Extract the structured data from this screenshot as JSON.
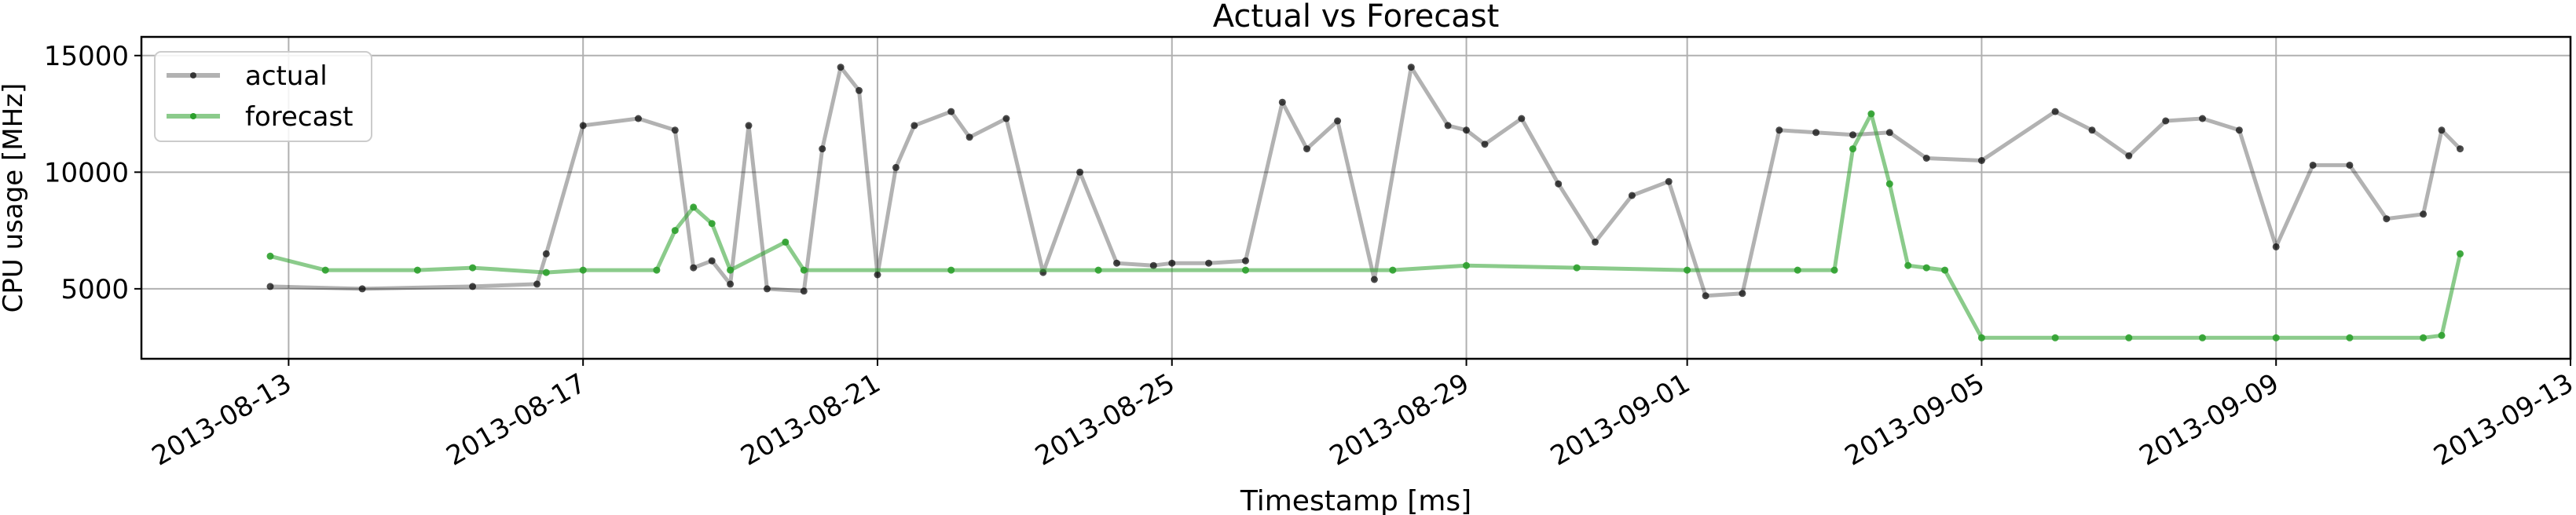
{
  "chart_data": {
    "type": "line",
    "title": "Actual vs Forecast",
    "xlabel": "Timestamp [ms]",
    "ylabel": "CPU usage [MHz]",
    "x_axis_type": "date",
    "xlim": [
      "2013-08-11",
      "2013-09-13"
    ],
    "ylim": [
      2000,
      15800
    ],
    "x_ticks": [
      "2013-08-13",
      "2013-08-17",
      "2013-08-21",
      "2013-08-25",
      "2013-08-29",
      "2013-09-01",
      "2013-09-05",
      "2013-09-09",
      "2013-09-13"
    ],
    "y_ticks": [
      5000,
      10000,
      15000
    ],
    "y_tick_labels": [
      "5000",
      "10000",
      "15000"
    ],
    "grid": true,
    "legend_position": "top-left",
    "series": [
      {
        "name": "actual",
        "color": "#000000",
        "x": [
          "2013-08-12 18:00",
          "2013-08-14 00:00",
          "2013-08-15 12:00",
          "2013-08-16 09:00",
          "2013-08-16 12:00",
          "2013-08-17 00:00",
          "2013-08-17 18:00",
          "2013-08-18 06:00",
          "2013-08-18 12:00",
          "2013-08-18 18:00",
          "2013-08-19 00:00",
          "2013-08-19 06:00",
          "2013-08-19 12:00",
          "2013-08-20 00:00",
          "2013-08-20 06:00",
          "2013-08-20 12:00",
          "2013-08-20 18:00",
          "2013-08-21 00:00",
          "2013-08-21 06:00",
          "2013-08-21 12:00",
          "2013-08-22 00:00",
          "2013-08-22 06:00",
          "2013-08-22 18:00",
          "2013-08-23 06:00",
          "2013-08-23 18:00",
          "2013-08-24 06:00",
          "2013-08-24 18:00",
          "2013-08-25 00:00",
          "2013-08-25 12:00",
          "2013-08-26 00:00",
          "2013-08-26 12:00",
          "2013-08-26 20:00",
          "2013-08-27 06:00",
          "2013-08-27 18:00",
          "2013-08-28 06:00",
          "2013-08-28 18:00",
          "2013-08-29 00:00",
          "2013-08-29 06:00",
          "2013-08-29 18:00",
          "2013-08-30 06:00",
          "2013-08-30 18:00",
          "2013-08-31 06:00",
          "2013-08-31 18:00",
          "2013-09-01 06:00",
          "2013-09-01 18:00",
          "2013-09-02 06:00",
          "2013-09-02 18:00",
          "2013-09-03 06:00",
          "2013-09-03 18:00",
          "2013-09-04 06:00",
          "2013-09-05 00:00",
          "2013-09-06 00:00",
          "2013-09-06 12:00",
          "2013-09-07 00:00",
          "2013-09-07 12:00",
          "2013-09-08 00:00",
          "2013-09-08 12:00",
          "2013-09-09 00:00",
          "2013-09-09 12:00",
          "2013-09-10 00:00",
          "2013-09-10 12:00",
          "2013-09-11 00:00",
          "2013-09-11 06:00",
          "2013-09-11 12:00"
        ],
        "y": [
          5100,
          5000,
          5100,
          5200,
          6500,
          12000,
          12300,
          11800,
          5900,
          6200,
          5200,
          12000,
          5000,
          4900,
          11000,
          14500,
          13500,
          5600,
          10200,
          12000,
          12600,
          11500,
          12300,
          5700,
          10000,
          6100,
          6000,
          6100,
          6100,
          6200,
          13000,
          11000,
          12200,
          5400,
          14500,
          12000,
          11800,
          11200,
          12300,
          9500,
          7000,
          9000,
          9600,
          4700,
          4800,
          11800,
          11700,
          11600,
          11700,
          10600,
          10500,
          12600,
          11800,
          10700,
          12200,
          12300,
          11800,
          6800,
          10300,
          10300,
          8000,
          8200,
          11800,
          11000
        ]
      },
      {
        "name": "forecast",
        "color": "#2ca02c",
        "x": [
          "2013-08-12 18:00",
          "2013-08-13 12:00",
          "2013-08-14 18:00",
          "2013-08-15 12:00",
          "2013-08-16 12:00",
          "2013-08-17 00:00",
          "2013-08-18 00:00",
          "2013-08-18 06:00",
          "2013-08-18 12:00",
          "2013-08-18 18:00",
          "2013-08-19 00:00",
          "2013-08-19 18:00",
          "2013-08-20 00:00",
          "2013-08-22 00:00",
          "2013-08-24 00:00",
          "2013-08-26 00:00",
          "2013-08-28 00:00",
          "2013-08-29 00:00",
          "2013-08-30 12:00",
          "2013-09-01 00:00",
          "2013-09-02 12:00",
          "2013-09-03 00:00",
          "2013-09-03 06:00",
          "2013-09-03 12:00",
          "2013-09-03 18:00",
          "2013-09-04 00:00",
          "2013-09-04 06:00",
          "2013-09-04 12:00",
          "2013-09-05 00:00",
          "2013-09-06 00:00",
          "2013-09-07 00:00",
          "2013-09-08 00:00",
          "2013-09-09 00:00",
          "2013-09-10 00:00",
          "2013-09-11 00:00",
          "2013-09-11 06:00",
          "2013-09-11 12:00"
        ],
        "y": [
          6400,
          5800,
          5800,
          5900,
          5700,
          5800,
          5800,
          7500,
          8500,
          7800,
          5800,
          7000,
          5800,
          5800,
          5800,
          5800,
          5800,
          6000,
          5900,
          5800,
          5800,
          5800,
          11000,
          12500,
          9500,
          6000,
          5900,
          5800,
          2900,
          2900,
          2900,
          2900,
          2900,
          2900,
          2900,
          3000,
          6500
        ]
      }
    ]
  }
}
